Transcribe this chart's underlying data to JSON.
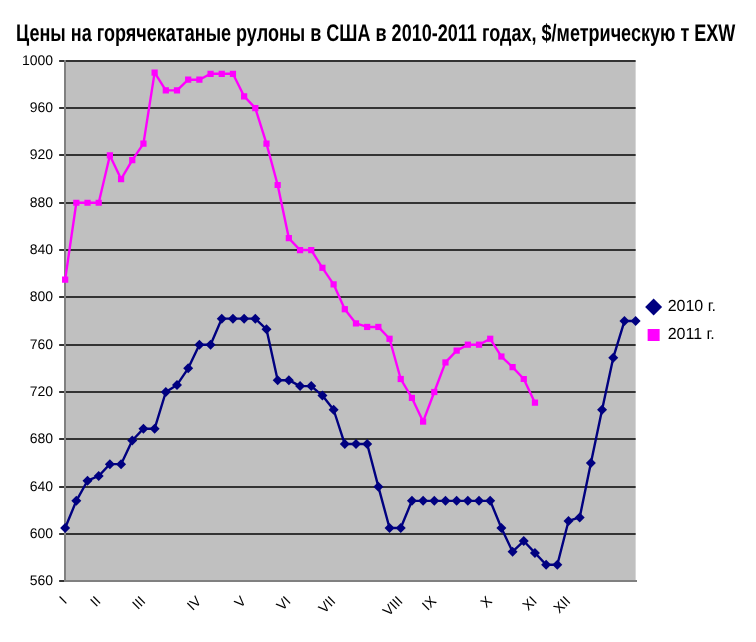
{
  "chart_data": {
    "type": "line",
    "title": "Цены на горячекатаные рулоны в США в 2010-2011 годах, $/метрическую т EXW",
    "categories": [
      "I",
      null,
      null,
      "II",
      null,
      null,
      null,
      "III",
      null,
      null,
      null,
      null,
      "IV",
      null,
      null,
      null,
      "V",
      null,
      null,
      null,
      "VI",
      null,
      null,
      null,
      "VII",
      null,
      null,
      null,
      null,
      null,
      "VIII",
      null,
      null,
      "IX",
      null,
      null,
      null,
      null,
      "X",
      null,
      null,
      null,
      "XI",
      null,
      null,
      "XII",
      null,
      null,
      null,
      null,
      null,
      null
    ],
    "series": [
      {
        "name": "2010 г.",
        "color": "#000080",
        "marker": "diamond",
        "values": [
          605,
          628,
          645,
          649,
          659,
          659,
          679,
          689,
          689,
          720,
          726,
          740,
          760,
          760,
          782,
          782,
          782,
          782,
          773,
          730,
          730,
          725,
          725,
          717,
          705,
          676,
          676,
          676,
          640,
          605,
          605,
          628,
          628,
          628,
          628,
          628,
          628,
          628,
          628,
          605,
          585,
          594,
          584,
          574,
          574,
          611,
          614,
          660,
          705,
          749,
          780,
          780
        ]
      },
      {
        "name": "2011 г.",
        "color": "#ff00ff",
        "marker": "square",
        "values": [
          815,
          880,
          880,
          880,
          920,
          900,
          916,
          930,
          990,
          975,
          975,
          984,
          984,
          989,
          989,
          989,
          970,
          960,
          930,
          895,
          850,
          840,
          840,
          825,
          811,
          790,
          778,
          775,
          775,
          765,
          731,
          715,
          695,
          720,
          745,
          755,
          760,
          760,
          765,
          750,
          741,
          731,
          711,
          null,
          null,
          null,
          null,
          null,
          null,
          null,
          null,
          null
        ]
      }
    ],
    "ylim": [
      560,
      1000
    ],
    "yticks": [
      560,
      600,
      640,
      680,
      720,
      760,
      800,
      840,
      880,
      920,
      960,
      1000
    ],
    "grid": "y",
    "legend": "right",
    "line_style": "solid"
  }
}
